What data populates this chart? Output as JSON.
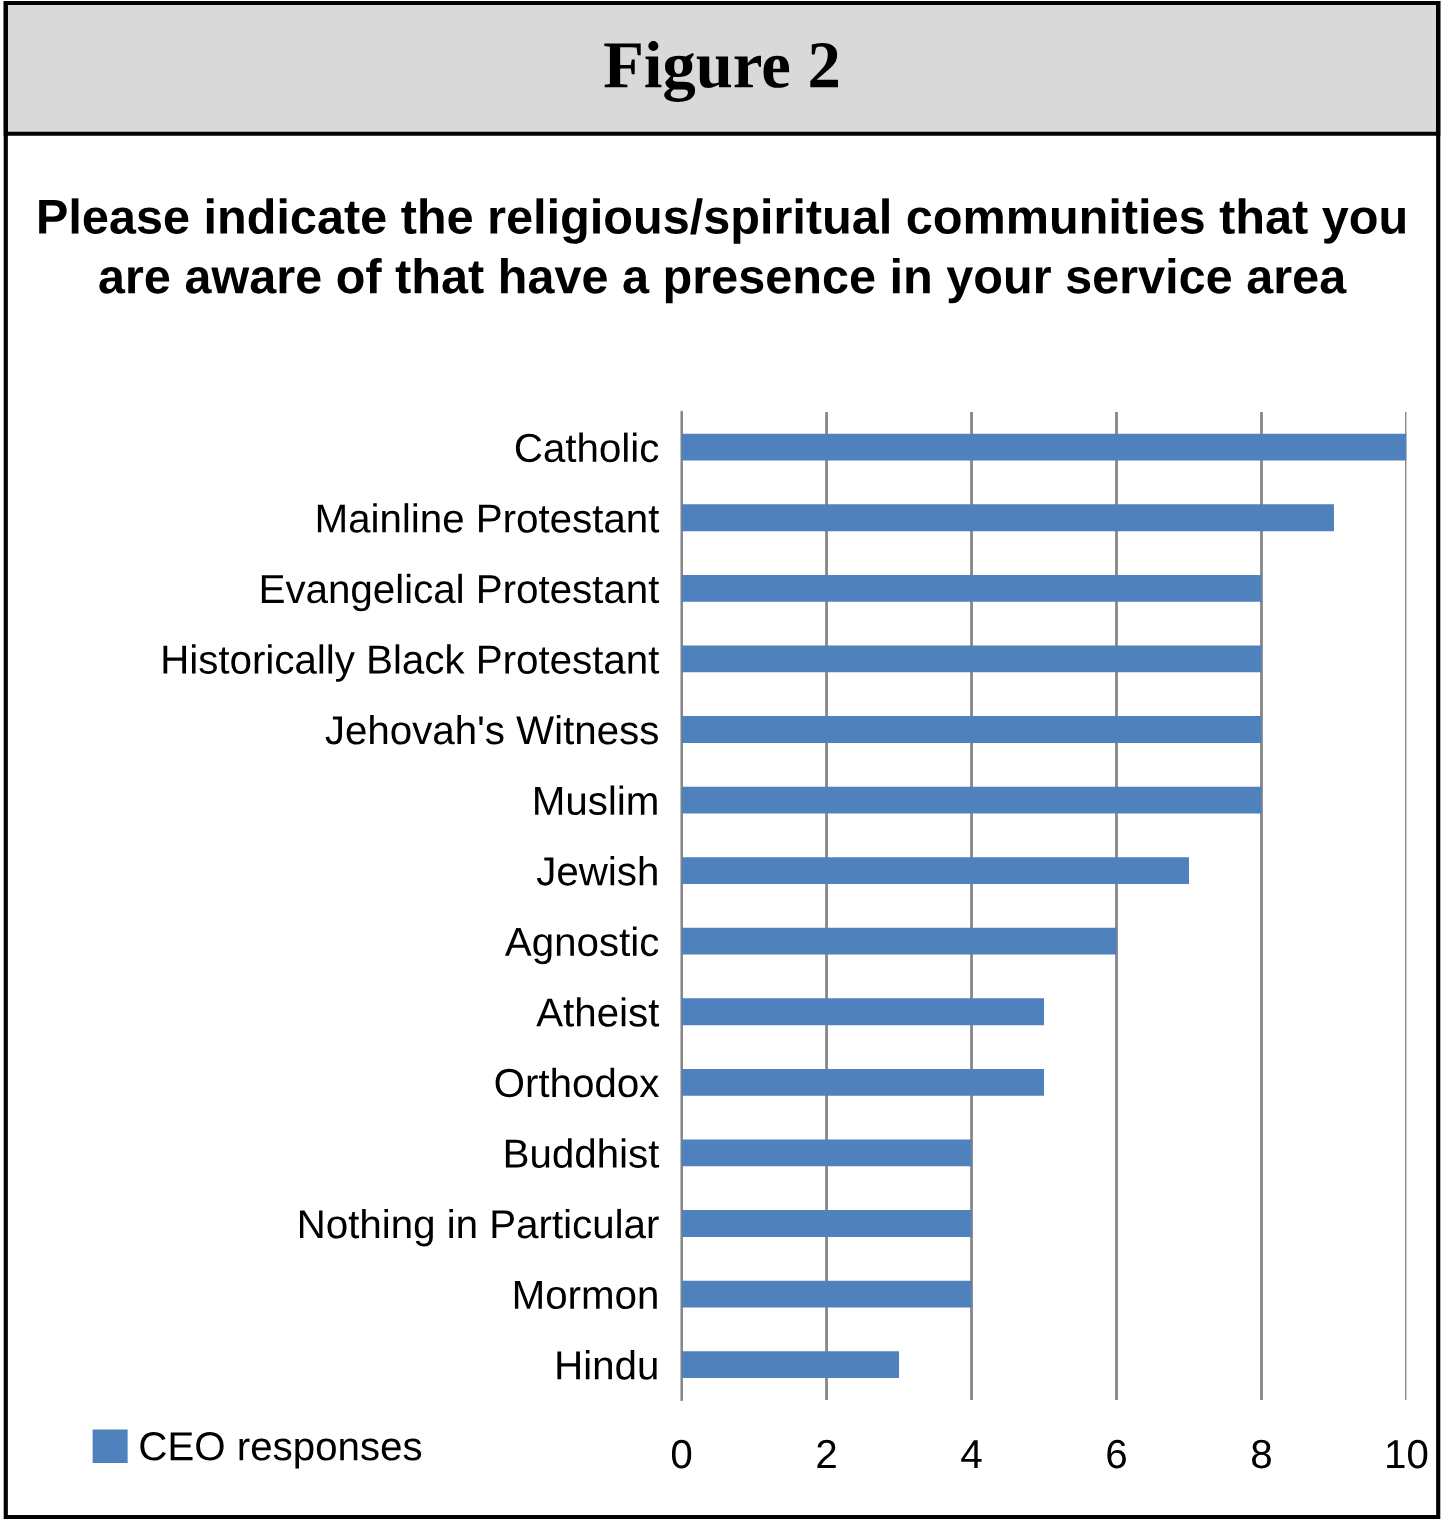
{
  "chart_data": {
    "type": "bar",
    "orientation": "horizontal",
    "title": "Figure 2",
    "subtitle": "Please indicate the religious/spiritual communities that you are aware of that have a presence in your service area",
    "categories": [
      "Catholic",
      "Mainline Protestant",
      "Evangelical Protestant",
      "Historically Black Protestant",
      "Jehovah's Witness",
      "Muslim",
      "Jewish",
      "Agnostic",
      "Atheist",
      "Orthodox",
      "Buddhist",
      "Nothing in Particular",
      "Mormon",
      "Hindu"
    ],
    "series": [
      {
        "name": "CEO responses",
        "color": "#4f81bd",
        "values": [
          10,
          9,
          8,
          8,
          8,
          8,
          7,
          6,
          5,
          5,
          4,
          4,
          4,
          3
        ]
      }
    ],
    "xlim": [
      0,
      10
    ],
    "xticks": [
      0,
      2,
      4,
      6,
      8,
      10
    ],
    "grid": "x",
    "legend": "bottom left"
  }
}
